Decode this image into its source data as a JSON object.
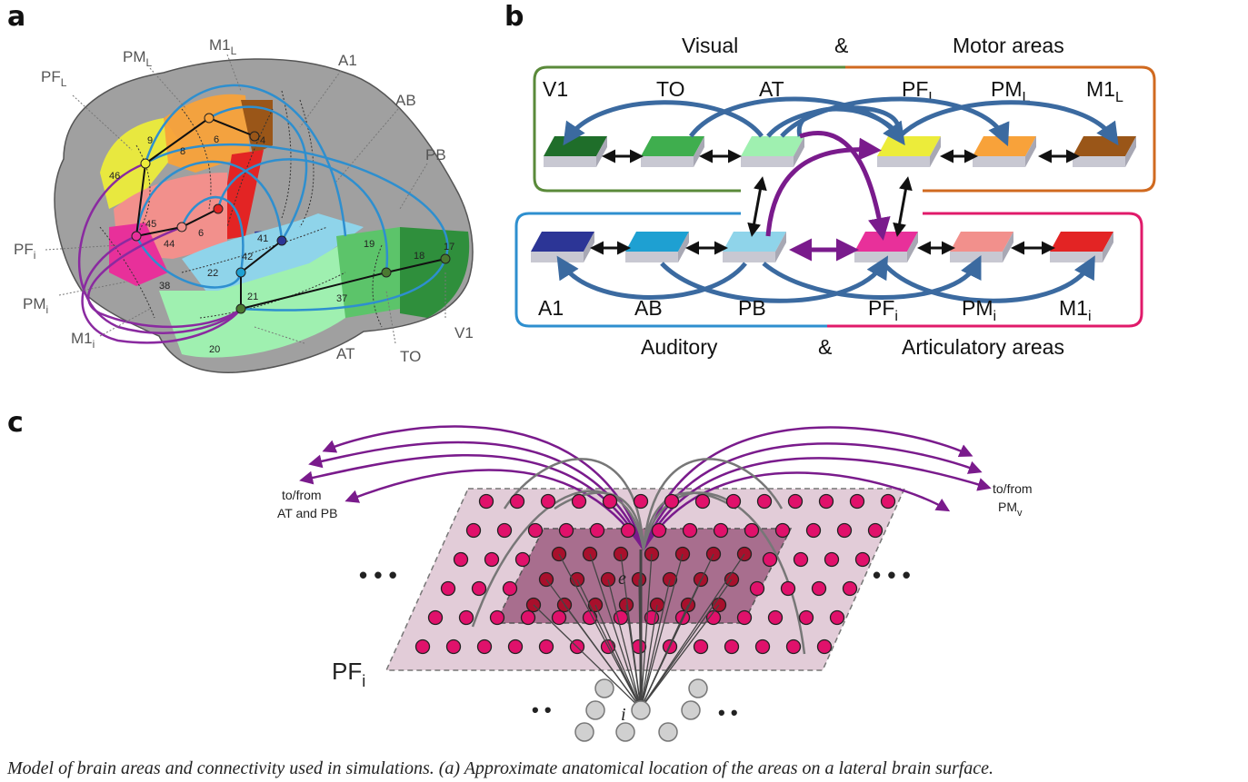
{
  "panels": {
    "a": {
      "letter": "a",
      "labels": {
        "PF_L": {
          "main": "PF",
          "sub": "L"
        },
        "PM_L": {
          "main": "PM",
          "sub": "L"
        },
        "M1_L": {
          "main": "M1",
          "sub": "L"
        },
        "A1": "A1",
        "AB": "AB",
        "PB": "PB",
        "PF_i": {
          "main": "PF",
          "sub": "i"
        },
        "PM_i": {
          "main": "PM",
          "sub": "i"
        },
        "M1_i": {
          "main": "M1",
          "sub": "i"
        },
        "AT": "AT",
        "TO": "TO",
        "V1": "V1"
      },
      "brodmann": [
        "9",
        "8",
        "6",
        "4",
        "46",
        "45",
        "44",
        "6",
        "41",
        "42",
        "22",
        "38",
        "21",
        "20",
        "19",
        "18",
        "17",
        "37"
      ]
    },
    "b": {
      "letter": "b",
      "top_left_title": "Visual",
      "top_amp": "&",
      "top_right_title": "Motor areas",
      "bottom_left_title": "Auditory",
      "bottom_amp": "&",
      "bottom_right_title": "Articulatory areas",
      "top_labels": [
        {
          "main": "V1",
          "sub": ""
        },
        {
          "main": "TO",
          "sub": ""
        },
        {
          "main": "AT",
          "sub": ""
        },
        {
          "main": "PF",
          "sub": "L"
        },
        {
          "main": "PM",
          "sub": "L"
        },
        {
          "main": "M1",
          "sub": "L"
        }
      ],
      "bottom_labels": [
        {
          "main": "A1",
          "sub": ""
        },
        {
          "main": "AB",
          "sub": ""
        },
        {
          "main": "PB",
          "sub": ""
        },
        {
          "main": "PF",
          "sub": "i"
        },
        {
          "main": "PM",
          "sub": "i"
        },
        {
          "main": "M1",
          "sub": "i"
        }
      ],
      "top_colors": [
        "#1f6e2a",
        "#3fae4e",
        "#9ff0b0",
        "#ecec3a",
        "#f8a23a",
        "#9a5618"
      ],
      "bottom_colors": [
        "#2c3596",
        "#1ea0d2",
        "#8fd4ea",
        "#e8309a",
        "#f2908c",
        "#e32424"
      ],
      "frame_colors": {
        "visual": "#5a8a3a",
        "motor": "#d06a20",
        "auditory": "#2e8fcf",
        "articulatory": "#e01a6a"
      }
    },
    "c": {
      "letter": "c",
      "left_note_line1": "to/from",
      "left_note_line2": "AT and PB",
      "right_note_line1": "to/from",
      "right_note_main": "PM",
      "right_note_sub": "v",
      "area_main": "PF",
      "area_sub": "i",
      "e_label": "e",
      "i_label": "i",
      "ellipsis": "• • •",
      "ellipsis_small": "• •"
    }
  },
  "caption": "Model of brain areas and connectivity used in simulations. (a) Approximate anatomical location of the areas on a lateral brain surface."
}
